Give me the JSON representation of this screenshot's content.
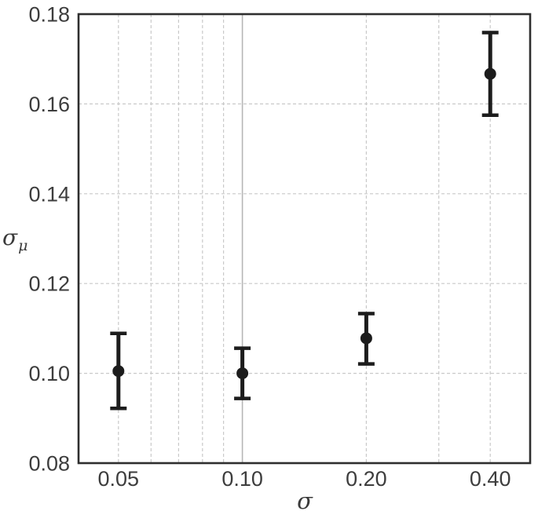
{
  "figure": {
    "background": "#ffffff"
  },
  "chart_data": {
    "type": "scatter",
    "title": "",
    "xlabel": "σ",
    "ylabel_base": "σ",
    "ylabel_sub": "μ",
    "xscale": "log",
    "yscale": "linear",
    "xlim": [
      0.04,
      0.5
    ],
    "ylim": [
      0.08,
      0.18
    ],
    "xticks": [
      {
        "value": 0.05,
        "label": "0.05"
      },
      {
        "value": 0.1,
        "label": "0.10"
      },
      {
        "value": 0.2,
        "label": "0.20"
      },
      {
        "value": 0.4,
        "label": "0.40"
      }
    ],
    "yticks": [
      {
        "value": 0.08,
        "label": "0.08"
      },
      {
        "value": 0.1,
        "label": "0.10"
      },
      {
        "value": 0.12,
        "label": "0.12"
      },
      {
        "value": 0.14,
        "label": "0.14"
      },
      {
        "value": 0.16,
        "label": "0.16"
      },
      {
        "value": 0.18,
        "label": "0.18"
      }
    ],
    "grid": {
      "x_minor_dashed": [
        0.05,
        0.06,
        0.07,
        0.08,
        0.09,
        0.2,
        0.3,
        0.4
      ],
      "x_major_solid": [
        0.1
      ],
      "y_dashed": [
        0.1,
        0.12,
        0.14,
        0.16
      ]
    },
    "series": [
      {
        "name": "sigma_mu_vs_sigma",
        "marker": "circle",
        "points": [
          {
            "x": 0.05,
            "y": 0.1005,
            "err_plus": 0.0084,
            "err_minus": 0.0083
          },
          {
            "x": 0.1,
            "y": 0.1,
            "err_plus": 0.0056,
            "err_minus": 0.0056
          },
          {
            "x": 0.2,
            "y": 0.1078,
            "err_plus": 0.0055,
            "err_minus": 0.0057
          },
          {
            "x": 0.4,
            "y": 0.1667,
            "err_plus": 0.0092,
            "err_minus": 0.0092
          }
        ]
      }
    ],
    "legend": null,
    "colors": {
      "background": "#ffffff",
      "axis_frame": "#2e2e2e",
      "tick_text": "#3d3d3d",
      "grid_minor": "#c9c9c9",
      "grid_major": "#b5b5b5",
      "point": "#1c1c1c"
    }
  }
}
